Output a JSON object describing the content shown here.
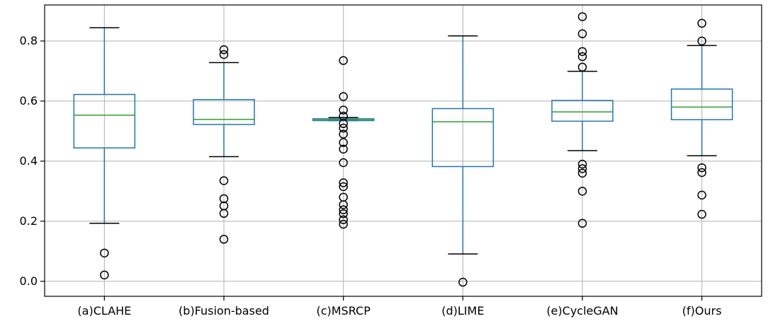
{
  "chart_data": {
    "type": "box",
    "title": "",
    "xlabel": "",
    "ylabel": "",
    "ylim": [
      -0.05,
      0.92
    ],
    "yticks": [
      0.0,
      0.2,
      0.4,
      0.6,
      0.8
    ],
    "ytick_labels": [
      "0.0",
      "0.2",
      "0.4",
      "0.6",
      "0.8"
    ],
    "grid": true,
    "colors": {
      "box": "#1f77b4",
      "median": "#2ca02c",
      "flier": "#000000",
      "grid": "#b0b0b0"
    },
    "categories": [
      "(a)CLAHE",
      "(b)Fusion-based",
      "(c)MSRCP",
      "(d)LIME",
      "(e)CycleGAN",
      "(f)Ours"
    ],
    "boxes": [
      {
        "whisker_low": 0.193,
        "q1": 0.444,
        "median": 0.553,
        "q3": 0.622,
        "whisker_high": 0.844,
        "outliers": [
          0.094,
          0.021
        ]
      },
      {
        "whisker_low": 0.415,
        "q1": 0.522,
        "median": 0.539,
        "q3": 0.605,
        "whisker_high": 0.728,
        "outliers": [
          0.771,
          0.755,
          0.335,
          0.275,
          0.251,
          0.226,
          0.14
        ]
      },
      {
        "whisker_low": 0.535,
        "q1": 0.535,
        "median": 0.539,
        "q3": 0.541,
        "whisker_high": 0.545,
        "outliers": [
          0.735,
          0.615,
          0.57,
          0.55,
          0.525,
          0.51,
          0.49,
          0.462,
          0.44,
          0.395,
          0.328,
          0.315,
          0.28,
          0.255,
          0.238,
          0.225,
          0.205,
          0.19
        ]
      },
      {
        "whisker_low": 0.091,
        "q1": 0.382,
        "median": 0.531,
        "q3": 0.575,
        "whisker_high": 0.817,
        "outliers": [
          -0.003
        ]
      },
      {
        "whisker_low": 0.435,
        "q1": 0.533,
        "median": 0.564,
        "q3": 0.602,
        "whisker_high": 0.699,
        "outliers": [
          0.881,
          0.824,
          0.765,
          0.748,
          0.713,
          0.39,
          0.375,
          0.36,
          0.3,
          0.193
        ]
      },
      {
        "whisker_low": 0.418,
        "q1": 0.538,
        "median": 0.58,
        "q3": 0.64,
        "whisker_high": 0.785,
        "outliers": [
          0.859,
          0.8,
          0.378,
          0.362,
          0.287,
          0.223
        ]
      }
    ]
  }
}
